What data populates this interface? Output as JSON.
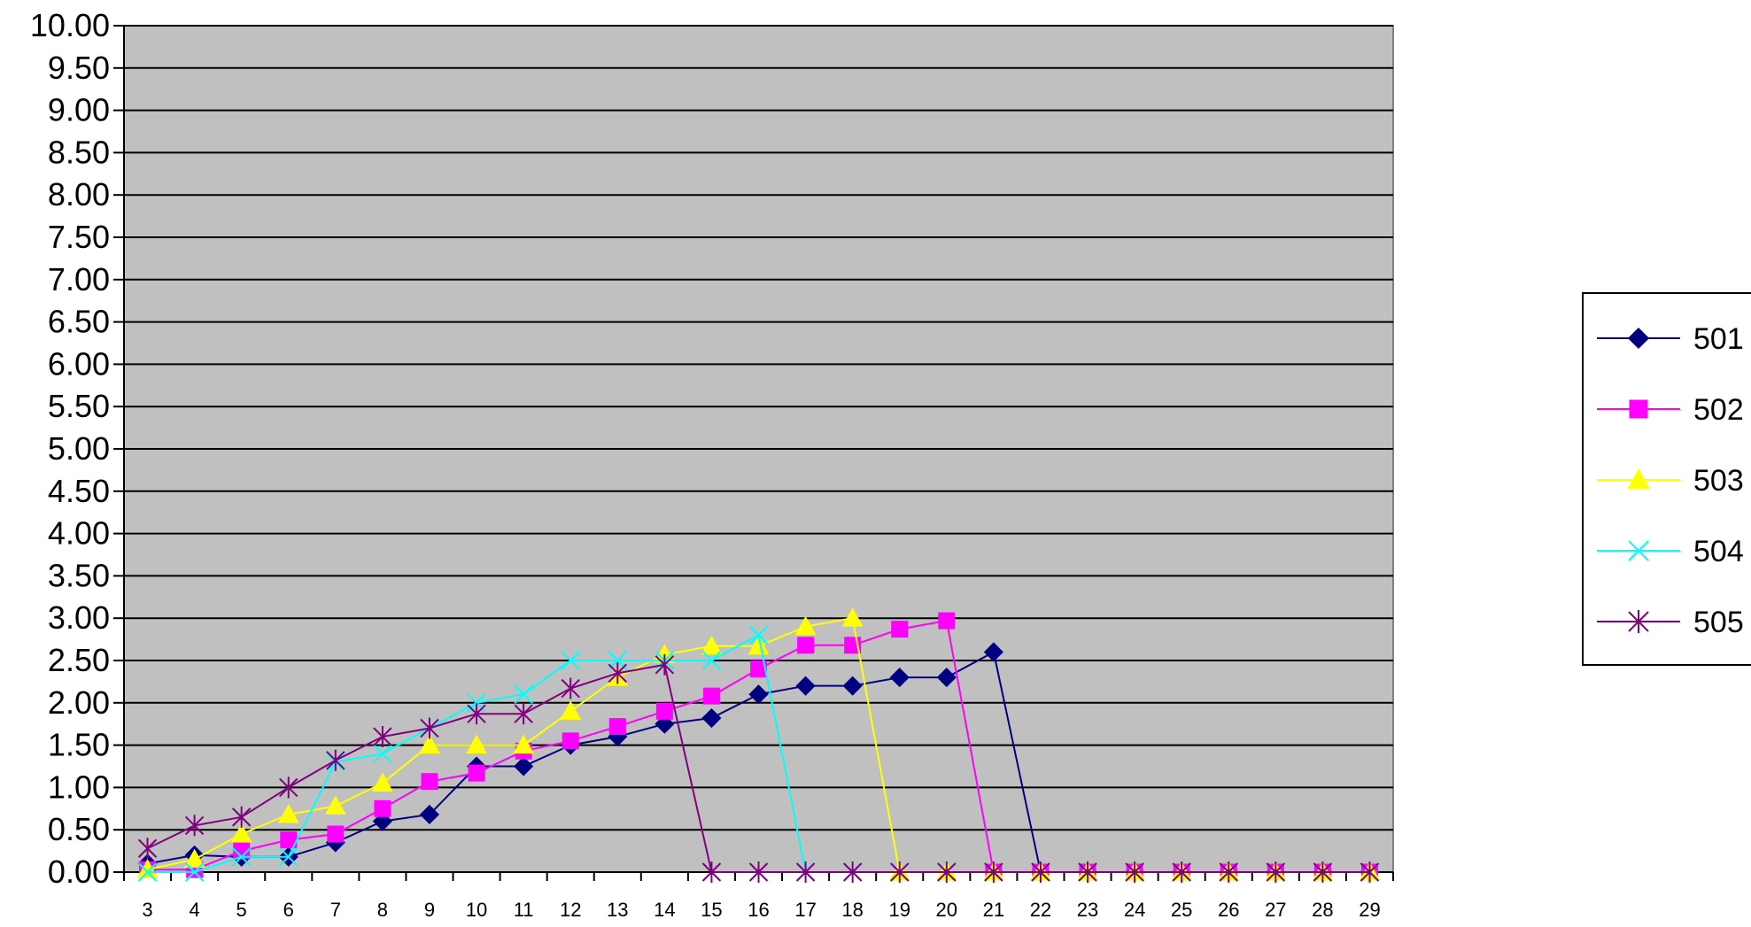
{
  "chart_data": {
    "type": "line",
    "title": "",
    "xlabel": "",
    "ylabel": "",
    "x": [
      3,
      4,
      5,
      6,
      7,
      8,
      9,
      10,
      11,
      12,
      13,
      14,
      15,
      16,
      17,
      18,
      19,
      20,
      21,
      22,
      23,
      24,
      25,
      26,
      27,
      28,
      29
    ],
    "x_tick_labels": [
      "3",
      "4",
      "5",
      "6",
      "7",
      "8",
      "9",
      "10",
      "11",
      "12",
      "13",
      "14",
      "15",
      "16",
      "17",
      "18",
      "19",
      "20",
      "21",
      "22",
      "23",
      "24",
      "25",
      "26",
      "27",
      "28",
      "29"
    ],
    "y_tick_labels": [
      "0.00",
      "0.50",
      "1.00",
      "1.50",
      "2.00",
      "2.50",
      "3.00",
      "3.50",
      "4.00",
      "4.50",
      "5.00",
      "5.50",
      "6.00",
      "6.50",
      "7.00",
      "7.50",
      "8.00",
      "8.50",
      "9.00",
      "9.50",
      "10.00"
    ],
    "ylim": [
      0,
      10
    ],
    "grid": "horizontal",
    "plot_background": "#c0c0c0",
    "legend_position": "right",
    "series": [
      {
        "name": "501",
        "color": "#000080",
        "marker": "diamond",
        "values": [
          0.1,
          0.2,
          0.18,
          0.18,
          0.35,
          0.6,
          0.68,
          1.25,
          1.25,
          1.5,
          1.6,
          1.75,
          1.82,
          2.1,
          2.2,
          2.2,
          2.3,
          2.3,
          2.6,
          0,
          0,
          0,
          0,
          0,
          0,
          0,
          0
        ]
      },
      {
        "name": "502",
        "color": "#ff00ff",
        "marker": "square",
        "values": [
          0.03,
          0.03,
          0.25,
          0.38,
          0.45,
          0.75,
          1.07,
          1.17,
          1.43,
          1.55,
          1.72,
          1.9,
          2.08,
          2.4,
          2.68,
          2.68,
          2.87,
          2.97,
          0,
          0,
          0,
          0,
          0,
          0,
          0,
          0,
          0
        ]
      },
      {
        "name": "503",
        "color": "#ffff00",
        "marker": "triangle",
        "values": [
          0.03,
          0.15,
          0.45,
          0.68,
          0.78,
          1.05,
          1.5,
          1.5,
          1.5,
          1.9,
          2.3,
          2.57,
          2.67,
          2.67,
          2.9,
          3.0,
          0,
          0,
          0,
          0,
          0,
          0,
          0,
          0,
          0,
          0,
          0
        ]
      },
      {
        "name": "504",
        "color": "#00ffff",
        "marker": "x",
        "values": [
          0,
          0,
          0.18,
          0.18,
          1.3,
          1.4,
          1.7,
          2.0,
          2.1,
          2.5,
          2.5,
          2.5,
          2.5,
          2.8,
          0,
          0,
          0,
          0,
          0,
          0,
          0,
          0,
          0,
          0,
          0,
          0,
          0
        ]
      },
      {
        "name": "505",
        "color": "#800080",
        "marker": "star",
        "values": [
          0.28,
          0.55,
          0.65,
          1.0,
          1.32,
          1.6,
          1.7,
          1.87,
          1.87,
          2.17,
          2.35,
          2.45,
          0,
          0,
          0,
          0,
          0,
          0,
          0,
          0,
          0,
          0,
          0,
          0,
          0,
          0,
          0
        ]
      }
    ]
  }
}
